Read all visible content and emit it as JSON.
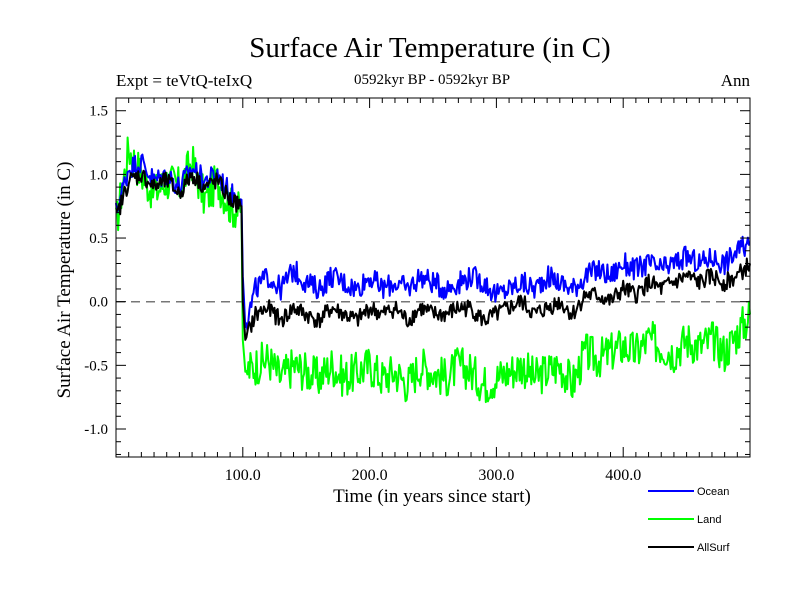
{
  "chart_data": {
    "type": "line",
    "title": "Surface Air Temperature (in C)",
    "subtitle": "0592kyr BP - 0592kyr BP",
    "expt_label": "Expt = teVtQ-teIxQ",
    "period_label": "Ann",
    "xlabel": "Time (in years since start)",
    "ylabel": "Surface Air Temperature (in C)",
    "xlim": [
      0,
      500
    ],
    "ylim": [
      -1.22,
      1.6
    ],
    "xticks": [
      100,
      200,
      300,
      400
    ],
    "xtick_labels": [
      "100.0",
      "200.0",
      "300.0",
      "400.0"
    ],
    "yticks": [
      -1.0,
      -0.5,
      0.0,
      0.5,
      1.0,
      1.5
    ],
    "ytick_labels": [
      "-1.0",
      "-0.5",
      "0.0",
      "0.5",
      "1.0",
      "1.5"
    ],
    "zero_line": true,
    "legend_position": "bottom-right",
    "series": [
      {
        "name": "Ocean",
        "color": "#0000ff",
        "x": [
          0,
          10,
          20,
          30,
          40,
          50,
          60,
          70,
          80,
          90,
          99,
          100,
          102,
          110,
          120,
          130,
          140,
          150,
          160,
          170,
          180,
          190,
          200,
          210,
          220,
          230,
          240,
          250,
          260,
          270,
          280,
          290,
          300,
          310,
          320,
          330,
          340,
          350,
          360,
          370,
          380,
          390,
          400,
          410,
          420,
          430,
          440,
          450,
          460,
          470,
          480,
          490,
          500
        ],
        "values": [
          0.7,
          1.05,
          1.1,
          0.95,
          1.0,
          0.9,
          1.05,
          0.95,
          1.0,
          0.85,
          0.8,
          0.2,
          -0.2,
          0.1,
          0.2,
          0.1,
          0.25,
          0.15,
          0.1,
          0.2,
          0.15,
          0.1,
          0.2,
          0.1,
          0.15,
          0.1,
          0.2,
          0.15,
          0.1,
          0.15,
          0.2,
          0.15,
          0.05,
          0.1,
          0.15,
          0.1,
          0.2,
          0.15,
          0.1,
          0.2,
          0.25,
          0.2,
          0.3,
          0.25,
          0.3,
          0.25,
          0.3,
          0.35,
          0.3,
          0.35,
          0.3,
          0.4,
          0.45
        ]
      },
      {
        "name": "Land",
        "color": "#00ff00",
        "x": [
          0,
          10,
          20,
          30,
          40,
          50,
          60,
          70,
          80,
          90,
          99,
          100,
          102,
          110,
          120,
          130,
          140,
          150,
          160,
          170,
          180,
          190,
          200,
          210,
          220,
          230,
          240,
          250,
          260,
          270,
          280,
          290,
          300,
          310,
          320,
          330,
          340,
          350,
          360,
          370,
          380,
          390,
          400,
          410,
          420,
          430,
          440,
          450,
          460,
          470,
          480,
          490,
          500
        ],
        "values": [
          0.6,
          1.2,
          1.0,
          0.85,
          0.95,
          0.9,
          1.1,
          0.8,
          0.95,
          0.75,
          0.7,
          -0.3,
          -0.55,
          -0.5,
          -0.45,
          -0.6,
          -0.5,
          -0.55,
          -0.6,
          -0.5,
          -0.6,
          -0.55,
          -0.5,
          -0.6,
          -0.55,
          -0.65,
          -0.5,
          -0.55,
          -0.6,
          -0.5,
          -0.55,
          -0.65,
          -0.6,
          -0.55,
          -0.5,
          -0.6,
          -0.55,
          -0.5,
          -0.65,
          -0.4,
          -0.45,
          -0.4,
          -0.35,
          -0.4,
          -0.3,
          -0.35,
          -0.4,
          -0.3,
          -0.35,
          -0.3,
          -0.4,
          -0.25,
          -0.1
        ]
      },
      {
        "name": "AllSurf",
        "color": "#000000",
        "x": [
          0,
          10,
          20,
          30,
          40,
          50,
          60,
          70,
          80,
          90,
          99,
          100,
          102,
          110,
          120,
          130,
          140,
          150,
          160,
          170,
          180,
          190,
          200,
          210,
          220,
          230,
          240,
          250,
          260,
          270,
          280,
          290,
          300,
          310,
          320,
          330,
          340,
          350,
          360,
          370,
          380,
          390,
          400,
          410,
          420,
          430,
          440,
          450,
          460,
          470,
          480,
          490,
          500
        ],
        "values": [
          0.65,
          0.95,
          1.0,
          0.9,
          0.95,
          0.85,
          1.0,
          0.9,
          0.95,
          0.8,
          0.75,
          0.0,
          -0.3,
          -0.1,
          -0.05,
          -0.15,
          -0.05,
          -0.1,
          -0.15,
          -0.05,
          -0.1,
          -0.15,
          -0.05,
          -0.1,
          -0.05,
          -0.15,
          -0.05,
          -0.1,
          -0.1,
          -0.05,
          -0.05,
          -0.15,
          -0.1,
          -0.05,
          0.0,
          -0.1,
          -0.05,
          0.0,
          -0.1,
          0.05,
          0.05,
          0.0,
          0.1,
          0.05,
          0.15,
          0.1,
          0.15,
          0.2,
          0.15,
          0.2,
          0.15,
          0.2,
          0.3
        ]
      }
    ]
  }
}
